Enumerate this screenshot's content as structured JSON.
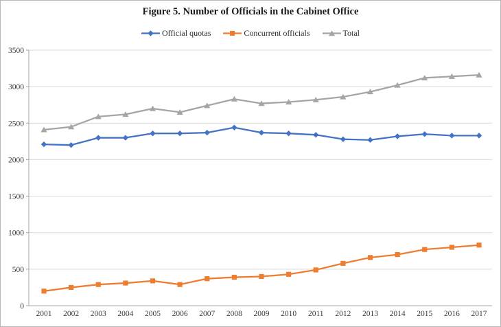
{
  "figure": {
    "background": "#ffffff",
    "border_color": "#b7b7b7"
  },
  "chart_data": {
    "type": "line",
    "title": "Figure 5. Number of Officials in the Cabinet Office",
    "x": [
      2001,
      2002,
      2003,
      2004,
      2005,
      2006,
      2007,
      2008,
      2009,
      2010,
      2011,
      2012,
      2013,
      2014,
      2015,
      2016,
      2017
    ],
    "series": [
      {
        "name": "Official quotas",
        "color": "#4472C4",
        "marker": "diamond",
        "values": [
          2210,
          2200,
          2300,
          2300,
          2360,
          2360,
          2370,
          2440,
          2370,
          2360,
          2340,
          2280,
          2270,
          2320,
          2350,
          2330,
          2330
        ]
      },
      {
        "name": "Concurrent officials",
        "color": "#ED7D31",
        "marker": "square",
        "values": [
          200,
          250,
          290,
          310,
          340,
          290,
          370,
          390,
          400,
          430,
          490,
          580,
          660,
          700,
          770,
          800,
          830
        ]
      },
      {
        "name": "Total",
        "color": "#A5A5A5",
        "marker": "triangle",
        "values": [
          2410,
          2450,
          2590,
          2620,
          2700,
          2650,
          2740,
          2830,
          2770,
          2790,
          2820,
          2860,
          2930,
          3020,
          3120,
          3140,
          3160
        ]
      }
    ],
    "xlabel": "",
    "ylabel": "",
    "ylim": [
      0,
      3500
    ],
    "yticks": [
      0,
      500,
      1000,
      1500,
      2000,
      2500,
      3000,
      3500
    ],
    "grid": true,
    "legend_position": "top",
    "gridline_color": "#d9d9d9",
    "axis_color": "#a6a6a6",
    "tick_label_color": "#3b3b3b"
  }
}
